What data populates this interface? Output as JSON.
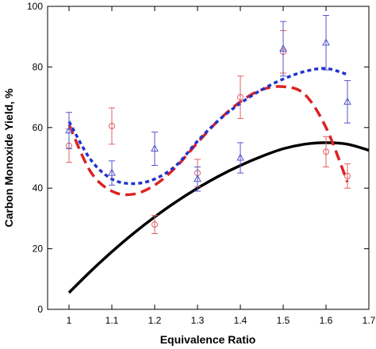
{
  "chart_data": {
    "type": "scatter",
    "xlabel": "Equivalence Ratio",
    "ylabel": "Carbon Monoxide Yield, %",
    "xlim": [
      0.95,
      1.7
    ],
    "ylim": [
      0,
      100
    ],
    "xticks": [
      1,
      1.1,
      1.2,
      1.3,
      1.4,
      1.5,
      1.6,
      1.7
    ],
    "xtick_labels": [
      "1",
      "1.1",
      "1.2",
      "1.3",
      "1.4",
      "1.5",
      "1.6",
      "1.7"
    ],
    "yticks": [
      0,
      20,
      40,
      60,
      80,
      100
    ],
    "ytick_labels": [
      "0",
      "20",
      "40",
      "60",
      "80",
      "100"
    ],
    "grid": false,
    "series": [
      {
        "kind": "points",
        "marker": "circle",
        "color": "#e06060",
        "x": [
          1.0,
          1.1,
          1.2,
          1.3,
          1.4,
          1.5,
          1.6,
          1.65
        ],
        "y": [
          54,
          60.5,
          28,
          45,
          70,
          85,
          52,
          44
        ],
        "err": [
          5.5,
          6,
          3,
          4.5,
          7,
          7,
          5,
          4
        ]
      },
      {
        "kind": "points",
        "marker": "triangle",
        "color": "#5555cc",
        "x": [
          1.0,
          1.1,
          1.2,
          1.3,
          1.4,
          1.5,
          1.6,
          1.65
        ],
        "y": [
          59,
          45,
          53,
          43,
          50,
          86,
          88,
          68.5
        ],
        "err": [
          6,
          4,
          5.5,
          4,
          5,
          9,
          9,
          7
        ]
      },
      {
        "kind": "line",
        "style": "solid",
        "color": "#000000",
        "width": 3.5,
        "x": [
          1.0,
          1.05,
          1.1,
          1.15,
          1.2,
          1.25,
          1.3,
          1.35,
          1.4,
          1.45,
          1.5,
          1.55,
          1.6,
          1.65,
          1.7
        ],
        "y": [
          5.5,
          12.5,
          19,
          25,
          30.5,
          35.5,
          40,
          44,
          47.5,
          50.5,
          53,
          54.5,
          55,
          54.5,
          52.5
        ]
      },
      {
        "kind": "line",
        "style": "dashed",
        "color": "#dd2222",
        "width": 3.5,
        "x": [
          1.0,
          1.05,
          1.1,
          1.15,
          1.2,
          1.25,
          1.3,
          1.35,
          1.4,
          1.45,
          1.5,
          1.55,
          1.6,
          1.65
        ],
        "y": [
          61,
          45.5,
          39,
          38,
          41,
          47,
          55,
          62.5,
          68.5,
          72.5,
          73.5,
          71,
          60,
          42
        ]
      },
      {
        "kind": "line",
        "style": "dotted",
        "color": "#2233cc",
        "width": 3.5,
        "x": [
          1.0,
          1.05,
          1.1,
          1.15,
          1.2,
          1.25,
          1.3,
          1.35,
          1.4,
          1.45,
          1.5,
          1.55,
          1.6,
          1.65
        ],
        "y": [
          62,
          49.5,
          43,
          41.5,
          43,
          47.5,
          55.5,
          62.5,
          68,
          72.5,
          76,
          78.5,
          79.5,
          77.5
        ]
      }
    ]
  }
}
